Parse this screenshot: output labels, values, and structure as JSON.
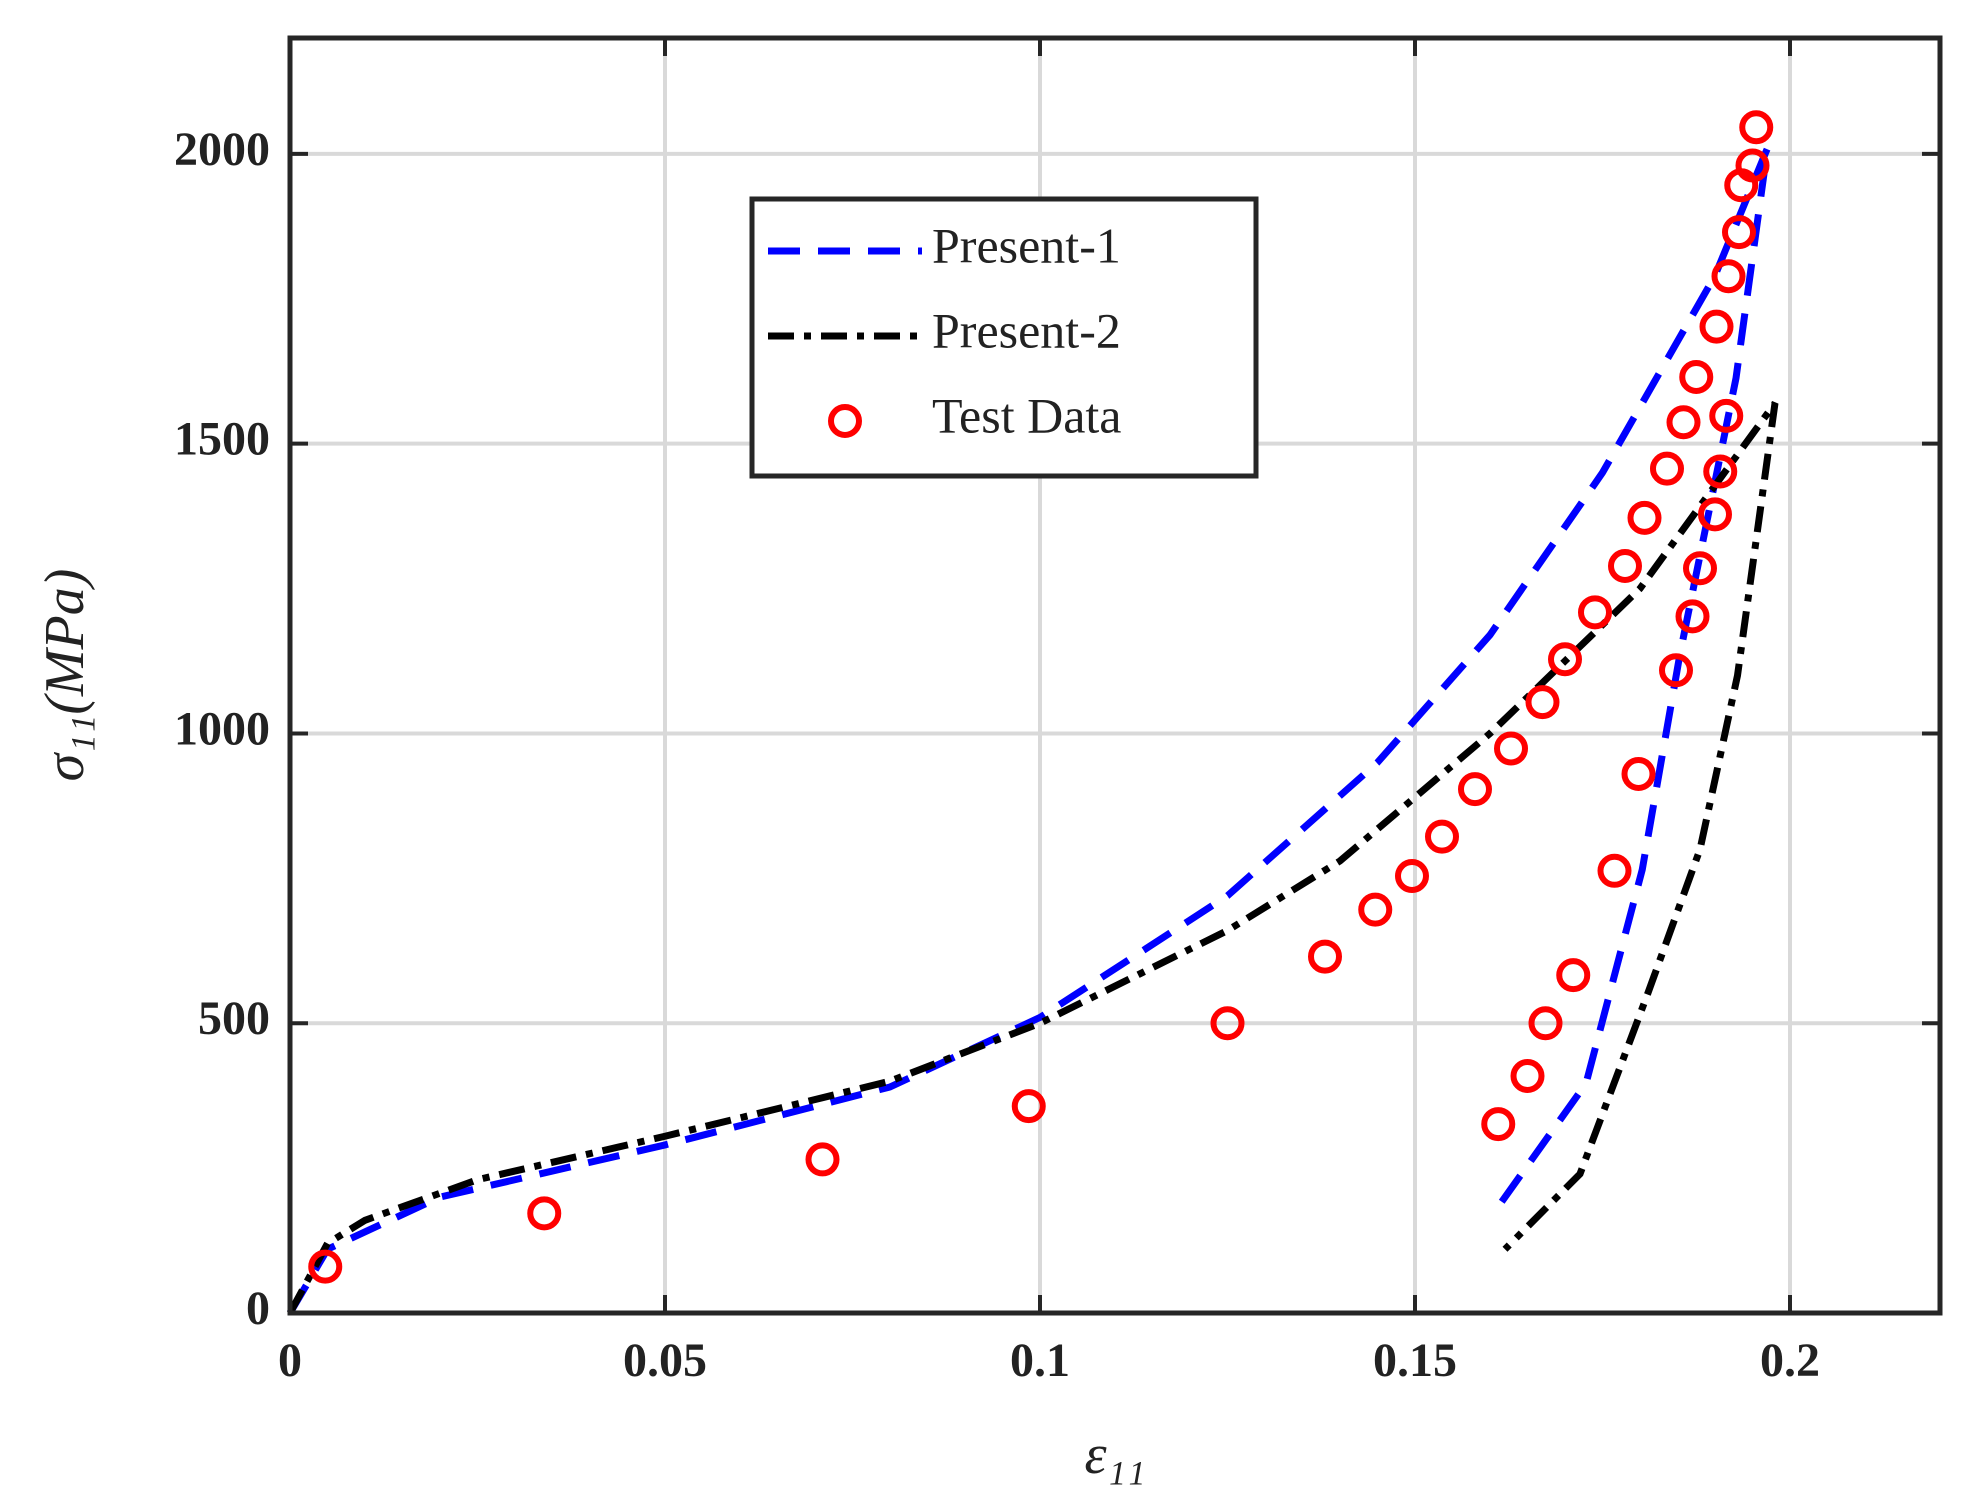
{
  "chart_data": {
    "type": "line",
    "xlabel": "ε₁₁",
    "ylabel": "σ₁₁(MPa)",
    "xlim": [
      0,
      0.22
    ],
    "ylim": [
      0,
      2200
    ],
    "xticks": [
      0,
      0.05,
      0.1,
      0.15,
      0.2
    ],
    "yticks": [
      0,
      500,
      1000,
      1500,
      2000
    ],
    "grid": true,
    "series": [
      {
        "name": "Present-1",
        "color": "#0000ff",
        "style": "dashed",
        "x": [
          0,
          0.005,
          0.02,
          0.05,
          0.08,
          0.1,
          0.125,
          0.145,
          0.16,
          0.175,
          0.19,
          0.197,
          0.1928,
          0.1853,
          0.1803,
          0.1728,
          0.1614
        ],
        "values": [
          0,
          110,
          200,
          290,
          390,
          510,
          720,
          950,
          1170,
          1450,
          1790,
          2010,
          1613,
          1135,
          765,
          396,
          189
        ]
      },
      {
        "name": "Present-2",
        "color": "#000000",
        "style": "dashdot",
        "x": [
          0,
          0.005,
          0.01,
          0.025,
          0.05,
          0.08,
          0.1,
          0.125,
          0.14,
          0.16,
          0.18,
          0.198,
          0.193,
          0.188,
          0.181,
          0.172,
          0.162
        ],
        "values": [
          0,
          120,
          160,
          230,
          305,
          400,
          500,
          660,
          780,
          1000,
          1250,
          1570,
          1100,
          800,
          550,
          240,
          110
        ]
      },
      {
        "name": "Test Data",
        "color": "#ff0000",
        "style": "marker",
        "x": [
          0.0047,
          0.0339,
          0.071,
          0.0985,
          0.125,
          0.138,
          0.1447,
          0.1496,
          0.1536,
          0.158,
          0.1628,
          0.167,
          0.17,
          0.174,
          0.178,
          0.1806,
          0.1836,
          0.1858,
          0.1875,
          0.1902,
          0.1918,
          0.1932,
          0.1935,
          0.195,
          0.1955,
          0.1915,
          0.1907,
          0.19,
          0.188,
          0.187,
          0.1848,
          0.1798,
          0.1766,
          0.1711,
          0.1674,
          0.165,
          0.1611
        ],
        "values": [
          80,
          172,
          265,
          357,
          500,
          615,
          696,
          754,
          822,
          904,
          974,
          1054,
          1128,
          1209,
          1289,
          1372,
          1457,
          1537,
          1615,
          1702,
          1789,
          1865,
          1946,
          1980,
          2046,
          1548,
          1452,
          1378,
          1285,
          1202,
          1109,
          930,
          763,
          583,
          500,
          409,
          326
        ]
      }
    ]
  }
}
